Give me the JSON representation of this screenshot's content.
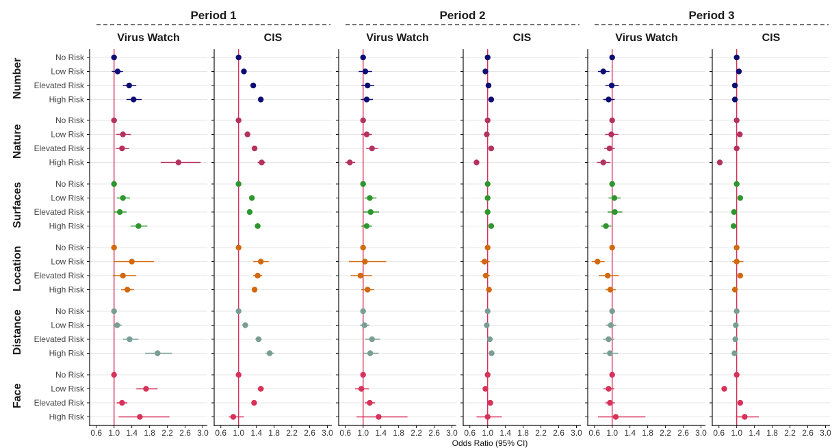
{
  "chart_data": {
    "type": "forest",
    "xlabel": "Odds Ratio (95% CI)",
    "xlim": [
      0.45,
      3.1
    ],
    "x_ticks": [
      "0.6",
      "1.0",
      "1.4",
      "1.8",
      "2.2",
      "2.6",
      "3.0"
    ],
    "reference_line": 1.0,
    "periods": [
      "Period 1",
      "Period 2",
      "Period 3"
    ],
    "studies": [
      "Virus Watch",
      "CIS"
    ],
    "categories": [
      "No Risk",
      "Low Risk",
      "Elevated Risk",
      "High Risk"
    ],
    "colors": {
      "Number": "#0d0d73",
      "Nature": "#b4325f",
      "Surfaces": "#2e962e",
      "Location": "#d2690f",
      "Distance": "#7a9e96",
      "Face": "#d6325a",
      "reference": "#d6325a",
      "grid": "#e6e6e6"
    },
    "groups": [
      {
        "name": "Number",
        "panels": [
          [
            [
              1,
              1,
              1
            ],
            [
              1.08,
              0.95,
              1.2
            ],
            [
              1.34,
              1.2,
              1.5
            ],
            [
              1.44,
              1.28,
              1.62
            ]
          ],
          [
            [
              1,
              1,
              1
            ],
            [
              1.12,
              1.08,
              1.16
            ],
            [
              1.33,
              1.29,
              1.37
            ],
            [
              1.5,
              1.45,
              1.55
            ]
          ],
          [
            [
              1,
              1,
              1
            ],
            [
              1.05,
              0.9,
              1.2
            ],
            [
              1.1,
              0.96,
              1.25
            ],
            [
              1.08,
              0.95,
              1.22
            ]
          ],
          [
            [
              1,
              1,
              1
            ],
            [
              0.95,
              0.91,
              0.99
            ],
            [
              1.02,
              0.98,
              1.06
            ],
            [
              1.08,
              1.04,
              1.12
            ]
          ],
          [
            [
              1,
              1,
              1
            ],
            [
              0.8,
              0.68,
              0.94
            ],
            [
              0.99,
              0.85,
              1.15
            ],
            [
              0.92,
              0.8,
              1.06
            ]
          ],
          [
            [
              1,
              1,
              1
            ],
            [
              1.05,
              1,
              1.1
            ],
            [
              0.96,
              0.92,
              1.0
            ],
            [
              0.96,
              0.92,
              1.0
            ]
          ]
        ]
      },
      {
        "name": "Nature",
        "panels": [
          [
            [
              1,
              1,
              1
            ],
            [
              1.2,
              1.05,
              1.38
            ],
            [
              1.18,
              1.04,
              1.34
            ],
            [
              2.45,
              2.05,
              2.95
            ]
          ],
          [
            [
              1,
              1,
              1
            ],
            [
              1.2,
              1.15,
              1.26
            ],
            [
              1.36,
              1.3,
              1.42
            ],
            [
              1.52,
              1.43,
              1.6
            ]
          ],
          [
            [
              1,
              1,
              1
            ],
            [
              1.08,
              0.96,
              1.2
            ],
            [
              1.2,
              1.07,
              1.34
            ],
            [
              0.7,
              0.6,
              0.82
            ]
          ],
          [
            [
              1,
              1,
              1
            ],
            [
              0.98,
              0.94,
              1.02
            ],
            [
              1.08,
              1.04,
              1.12
            ],
            [
              0.75,
              0.7,
              0.8
            ]
          ],
          [
            [
              1,
              1,
              1
            ],
            [
              0.98,
              0.84,
              1.14
            ],
            [
              0.94,
              0.82,
              1.06
            ],
            [
              0.8,
              0.66,
              0.96
            ]
          ],
          [
            [
              1,
              1,
              1
            ],
            [
              1.07,
              1.02,
              1.12
            ],
            [
              1,
              0.96,
              1.04
            ],
            [
              0.62,
              0.56,
              0.68
            ]
          ]
        ]
      },
      {
        "name": "Surfaces",
        "panels": [
          [
            [
              1,
              1,
              1
            ],
            [
              1.2,
              1.06,
              1.36
            ],
            [
              1.13,
              0.99,
              1.28
            ],
            [
              1.55,
              1.37,
              1.75
            ]
          ],
          [
            [
              1,
              1,
              1
            ],
            [
              1.3,
              1.26,
              1.34
            ],
            [
              1.25,
              1.2,
              1.3
            ],
            [
              1.43,
              1.38,
              1.48
            ]
          ],
          [
            [
              1,
              1,
              1
            ],
            [
              1.15,
              1.03,
              1.3
            ],
            [
              1.17,
              1.0,
              1.36
            ],
            [
              1.08,
              0.96,
              1.2
            ]
          ],
          [
            [
              1,
              1,
              1
            ],
            [
              1.0,
              0.96,
              1.04
            ],
            [
              1.0,
              0.96,
              1.04
            ],
            [
              1.08,
              1.04,
              1.12
            ]
          ],
          [
            [
              1,
              1,
              1
            ],
            [
              1.05,
              0.92,
              1.19
            ],
            [
              1.06,
              0.9,
              1.23
            ],
            [
              0.86,
              0.75,
              0.98
            ]
          ],
          [
            [
              1,
              1,
              1
            ],
            [
              1.08,
              1.03,
              1.13
            ],
            [
              0.94,
              0.9,
              0.98
            ],
            [
              0.93,
              0.89,
              0.97
            ]
          ]
        ]
      },
      {
        "name": "Location",
        "panels": [
          [
            [
              1,
              1,
              1
            ],
            [
              1.4,
              1.0,
              1.9
            ],
            [
              1.2,
              0.97,
              1.5
            ],
            [
              1.3,
              1.16,
              1.45
            ]
          ],
          [
            [
              1,
              1,
              1
            ],
            [
              1.5,
              1.33,
              1.68
            ],
            [
              1.43,
              1.33,
              1.53
            ],
            [
              1.36,
              1.31,
              1.41
            ]
          ],
          [
            [
              1,
              1,
              1
            ],
            [
              1.04,
              0.68,
              1.52
            ],
            [
              0.94,
              0.72,
              1.2
            ],
            [
              1.1,
              0.96,
              1.25
            ]
          ],
          [
            [
              1,
              1,
              1
            ],
            [
              0.93,
              0.84,
              1.05
            ],
            [
              0.96,
              0.89,
              1.05
            ],
            [
              1.03,
              0.99,
              1.07
            ]
          ],
          [
            [
              1,
              1,
              1
            ],
            [
              0.67,
              0.54,
              0.83
            ],
            [
              0.9,
              0.7,
              1.15
            ],
            [
              0.96,
              0.85,
              1.08
            ]
          ],
          [
            [
              1,
              1,
              1
            ],
            [
              1.0,
              0.9,
              1.15
            ],
            [
              1.08,
              1.02,
              1.14
            ],
            [
              0.96,
              0.93,
              0.99
            ]
          ]
        ]
      },
      {
        "name": "Distance",
        "panels": [
          [
            [
              1,
              1,
              1
            ],
            [
              1.07,
              0.98,
              1.17
            ],
            [
              1.35,
              1.2,
              1.55
            ],
            [
              1.98,
              1.7,
              2.3
            ]
          ],
          [
            [
              1,
              1,
              1
            ],
            [
              1.15,
              1.11,
              1.19
            ],
            [
              1.45,
              1.38,
              1.52
            ],
            [
              1.7,
              1.61,
              1.8
            ]
          ],
          [
            [
              1,
              1,
              1
            ],
            [
              1.03,
              0.93,
              1.14
            ],
            [
              1.2,
              1.05,
              1.38
            ],
            [
              1.16,
              1.0,
              1.35
            ]
          ],
          [
            [
              1,
              1,
              1
            ],
            [
              0.98,
              0.95,
              1.01
            ],
            [
              1.05,
              1.01,
              1.09
            ],
            [
              1.09,
              1.04,
              1.15
            ]
          ],
          [
            [
              1,
              1,
              1
            ],
            [
              0.97,
              0.86,
              1.09
            ],
            [
              0.92,
              0.8,
              1.05
            ],
            [
              0.95,
              0.8,
              1.13
            ]
          ],
          [
            [
              1,
              1,
              1
            ],
            [
              0.98,
              0.95,
              1.01
            ],
            [
              0.97,
              0.93,
              1.01
            ],
            [
              0.95,
              0.9,
              1.0
            ]
          ]
        ]
      },
      {
        "name": "Face",
        "panels": [
          [
            [
              1,
              1,
              1
            ],
            [
              1.72,
              1.5,
              1.98
            ],
            [
              1.18,
              1.06,
              1.3
            ],
            [
              1.58,
              1.1,
              2.25
            ]
          ],
          [
            [
              1,
              1,
              1
            ],
            [
              1.5,
              1.43,
              1.57
            ],
            [
              1.35,
              1.3,
              1.4
            ],
            [
              0.88,
              0.78,
              1.12
            ]
          ],
          [
            [
              1,
              1,
              1
            ],
            [
              0.96,
              0.82,
              1.13
            ],
            [
              1.15,
              1.04,
              1.27
            ],
            [
              1.35,
              0.85,
              2.0
            ]
          ],
          [
            [
              1,
              1,
              1
            ],
            [
              0.95,
              0.91,
              0.99
            ],
            [
              1.06,
              1.02,
              1.1
            ],
            [
              1.0,
              0.75,
              1.32
            ]
          ],
          [
            [
              1,
              1,
              1
            ],
            [
              0.92,
              0.8,
              1.05
            ],
            [
              0.95,
              0.85,
              1.06
            ],
            [
              1.08,
              0.68,
              1.75
            ]
          ],
          [
            [
              1,
              1,
              1
            ],
            [
              0.72,
              0.67,
              0.77
            ],
            [
              1.08,
              1.03,
              1.13
            ],
            [
              1.18,
              0.98,
              1.5
            ]
          ]
        ]
      }
    ]
  }
}
